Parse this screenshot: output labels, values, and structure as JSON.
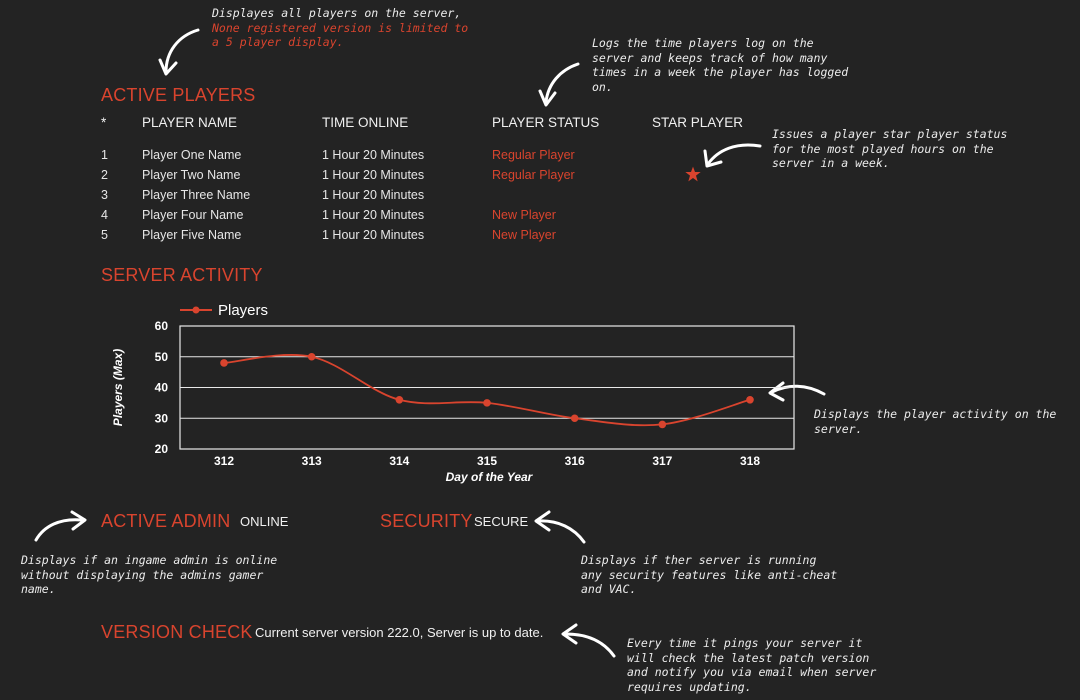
{
  "notes": {
    "players_line1": "Displayes all players on the server,",
    "players_line2": "None registered version is limited to",
    "players_line3": "a 5 player display.",
    "status_lines": [
      "Logs the time players log on the",
      "server and keeps track of how many",
      "times in a week the player has logged",
      "on."
    ],
    "star_lines": [
      "Issues a player star player status",
      "for the most played hours on the",
      "server in a week."
    ],
    "activity_lines": [
      "Displays the player activity on the",
      "server."
    ],
    "admin_lines": [
      "Displays if an ingame admin is online",
      "without displaying the admins gamer",
      "name."
    ],
    "security_lines": [
      "Displays if ther server is running",
      "any security features like anti-cheat",
      "and VAC."
    ],
    "version_lines": [
      "Every time it pings your server it",
      "will check the latest patch version",
      "and notify you via email when server",
      "requires updating."
    ]
  },
  "active_players": {
    "heading": "ACTIVE PLAYERS",
    "headers": [
      "*",
      "PLAYER NAME",
      "TIME ONLINE",
      "PLAYER STATUS",
      "STAR PLAYER"
    ],
    "rows": [
      {
        "num": "1",
        "name": "Player One Name",
        "time": "1 Hour 20 Minutes",
        "status": "Regular Player"
      },
      {
        "num": "2",
        "name": "Player Two Name",
        "time": "1 Hour 20 Minutes",
        "status": "Regular Player"
      },
      {
        "num": "3",
        "name": "Player Three Name",
        "time": "1 Hour 20 Minutes",
        "status": ""
      },
      {
        "num": "4",
        "name": "Player Four Name",
        "time": "1 Hour 20 Minutes",
        "status": "New Player"
      },
      {
        "num": "5",
        "name": "Player Five Name",
        "time": "1 Hour 20 Minutes",
        "status": "New Player"
      }
    ],
    "star_icon": "star-icon"
  },
  "server_activity": {
    "heading": "SERVER ACTIVITY"
  },
  "chart_data": {
    "type": "line",
    "x": [
      312,
      313,
      314,
      315,
      316,
      317,
      318
    ],
    "series": [
      {
        "name": "Players",
        "values": [
          48,
          50,
          36,
          35,
          30,
          28,
          36
        ]
      }
    ],
    "xlabel": "Day of the Year",
    "ylabel": "Players (Max)",
    "ylim": [
      20,
      60
    ],
    "yticks": [
      20,
      30,
      40,
      50,
      60
    ],
    "grid": true,
    "legend": "top-left",
    "color": "#d9442e"
  },
  "active_admin": {
    "heading": "ACTIVE ADMIN",
    "value": "ONLINE"
  },
  "security": {
    "heading": "SECURITY",
    "value": "SECURE"
  },
  "version_check": {
    "heading": "VERSION CHECK",
    "value": "Current server version 222.0, Server is up to date."
  },
  "colors": {
    "accent": "#d9442e",
    "background": "#232323",
    "text": "#e6e6e6"
  }
}
